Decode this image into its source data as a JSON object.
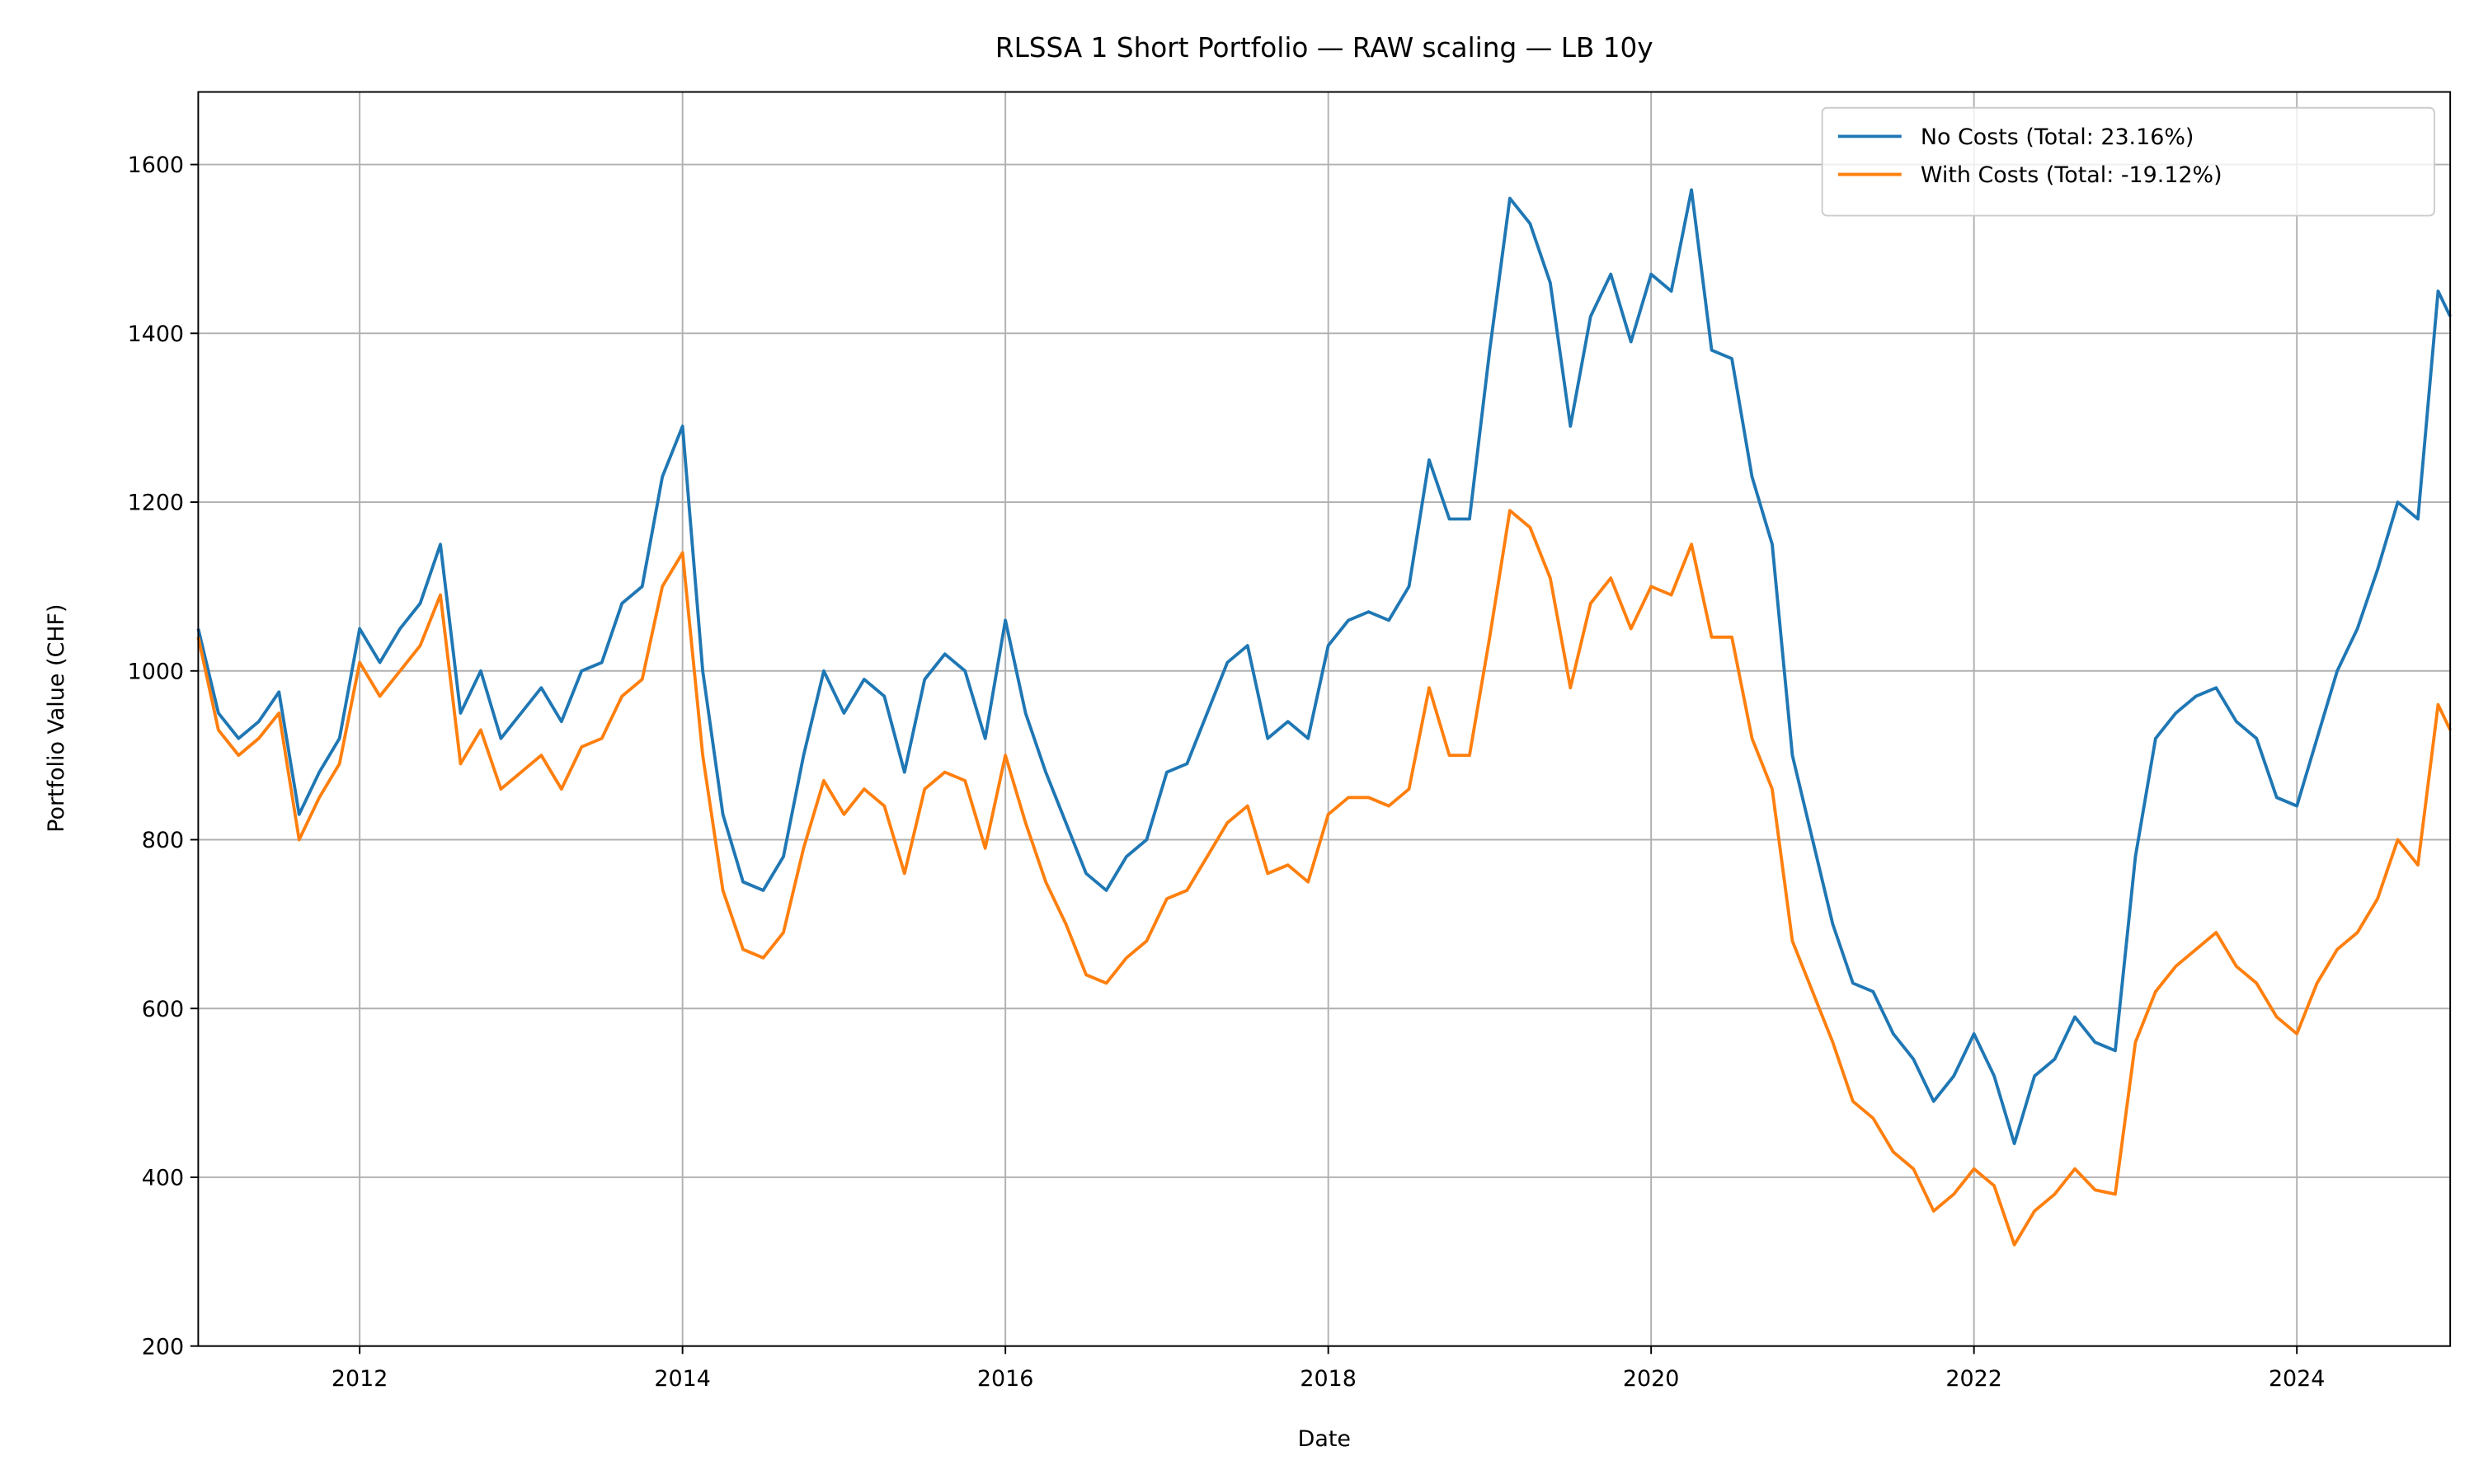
{
  "chart_data": {
    "type": "line",
    "title": "RLSSA 1 Short Portfolio — RAW scaling — LB 10y",
    "x_label": "Date",
    "y_label": "Portfolio Value (CHF)",
    "x": [
      2011,
      2011.125,
      2011.25,
      2011.375,
      2011.5,
      2011.625,
      2011.75,
      2011.875,
      2012,
      2012.125,
      2012.25,
      2012.375,
      2012.5,
      2012.625,
      2012.75,
      2012.875,
      2013,
      2013.125,
      2013.25,
      2013.375,
      2013.5,
      2013.625,
      2013.75,
      2013.875,
      2014,
      2014.125,
      2014.25,
      2014.375,
      2014.5,
      2014.625,
      2014.75,
      2014.875,
      2015,
      2015.125,
      2015.25,
      2015.375,
      2015.5,
      2015.625,
      2015.75,
      2015.875,
      2016,
      2016.125,
      2016.25,
      2016.375,
      2016.5,
      2016.625,
      2016.75,
      2016.875,
      2017,
      2017.125,
      2017.25,
      2017.375,
      2017.5,
      2017.625,
      2017.75,
      2017.875,
      2018,
      2018.125,
      2018.25,
      2018.375,
      2018.5,
      2018.625,
      2018.75,
      2018.875,
      2019,
      2019.125,
      2019.25,
      2019.375,
      2019.5,
      2019.625,
      2019.75,
      2019.875,
      2020,
      2020.125,
      2020.25,
      2020.375,
      2020.5,
      2020.625,
      2020.75,
      2020.875,
      2021,
      2021.125,
      2021.25,
      2021.375,
      2021.5,
      2021.625,
      2021.75,
      2021.875,
      2022,
      2022.125,
      2022.25,
      2022.375,
      2022.5,
      2022.625,
      2022.75,
      2022.875,
      2023,
      2023.125,
      2023.25,
      2023.375,
      2023.5,
      2023.625,
      2023.75,
      2023.875,
      2024,
      2024.125,
      2024.25,
      2024.375,
      2024.5,
      2024.625,
      2024.75,
      2024.875,
      2024.95
    ],
    "series": [
      {
        "name": "No Costs (Total: 23.16%)",
        "color": "#1f77b4",
        "values": [
          1050,
          950,
          920,
          940,
          975,
          830,
          880,
          920,
          1050,
          1010,
          1050,
          1080,
          1150,
          950,
          1000,
          920,
          950,
          980,
          940,
          1000,
          1010,
          1080,
          1100,
          1230,
          1290,
          1000,
          830,
          750,
          740,
          780,
          900,
          1000,
          950,
          990,
          970,
          880,
          990,
          1020,
          1000,
          920,
          1060,
          950,
          880,
          820,
          760,
          740,
          780,
          800,
          880,
          890,
          950,
          1010,
          1030,
          920,
          940,
          920,
          1030,
          1060,
          1070,
          1060,
          1100,
          1250,
          1180,
          1180,
          1380,
          1560,
          1530,
          1460,
          1290,
          1420,
          1470,
          1390,
          1470,
          1450,
          1570,
          1380,
          1370,
          1230,
          1150,
          900,
          800,
          700,
          630,
          620,
          570,
          540,
          490,
          520,
          570,
          520,
          440,
          520,
          540,
          590,
          560,
          550,
          780,
          920,
          950,
          970,
          980,
          940,
          920,
          850,
          840,
          920,
          1000,
          1050,
          1120,
          1200,
          1180,
          1450,
          1420
        ]
      },
      {
        "name": "With Costs (Total: -19.12%)",
        "color": "#ff7f0e",
        "values": [
          1040,
          930,
          900,
          920,
          950,
          800,
          850,
          890,
          1010,
          970,
          1000,
          1030,
          1090,
          890,
          930,
          860,
          880,
          900,
          860,
          910,
          920,
          970,
          990,
          1100,
          1140,
          900,
          740,
          670,
          660,
          690,
          790,
          870,
          830,
          860,
          840,
          760,
          860,
          880,
          870,
          790,
          900,
          820,
          750,
          700,
          640,
          630,
          660,
          680,
          730,
          740,
          780,
          820,
          840,
          760,
          770,
          750,
          830,
          850,
          850,
          840,
          860,
          980,
          900,
          900,
          1040,
          1190,
          1170,
          1110,
          980,
          1080,
          1110,
          1050,
          1100,
          1090,
          1150,
          1040,
          1040,
          920,
          860,
          680,
          620,
          560,
          490,
          470,
          430,
          410,
          360,
          380,
          410,
          390,
          320,
          360,
          380,
          410,
          385,
          380,
          560,
          620,
          650,
          670,
          690,
          650,
          630,
          590,
          570,
          630,
          670,
          690,
          730,
          800,
          770,
          960,
          930
        ]
      }
    ],
    "xlim": [
      2011,
      2024.95
    ],
    "ylim": [
      200,
      1686
    ],
    "xticks": [
      2012,
      2014,
      2016,
      2018,
      2020,
      2022,
      2024
    ],
    "yticks": [
      200,
      400,
      600,
      800,
      1000,
      1200,
      1400,
      1600
    ],
    "grid": true,
    "legend": "upper right"
  }
}
